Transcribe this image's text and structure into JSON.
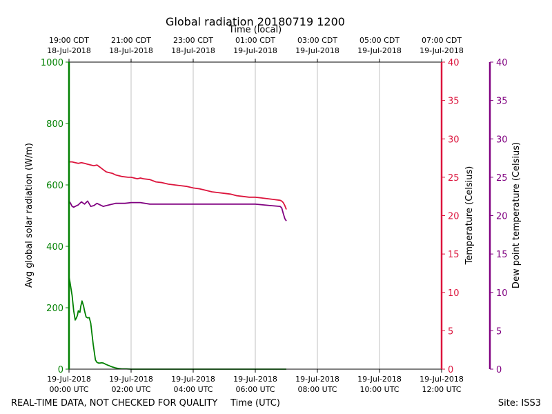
{
  "chart_data": {
    "type": "line",
    "title": "Global radiation 20180719 1200",
    "top_xlabel": "Time (local)",
    "xlabel": "Time (UTC)",
    "xlim": [
      0,
      12
    ],
    "bottom_ticks": [
      {
        "x": 0,
        "line1": "19-Jul-2018",
        "line2": "00:00 UTC"
      },
      {
        "x": 2,
        "line1": "19-Jul-2018",
        "line2": "02:00 UTC"
      },
      {
        "x": 4,
        "line1": "19-Jul-2018",
        "line2": "04:00 UTC"
      },
      {
        "x": 6,
        "line1": "19-Jul-2018",
        "line2": "06:00 UTC"
      },
      {
        "x": 8,
        "line1": "19-Jul-2018",
        "line2": "08:00 UTC"
      },
      {
        "x": 10,
        "line1": "19-Jul-2018",
        "line2": "10:00 UTC"
      },
      {
        "x": 12,
        "line1": "19-Jul-2018",
        "line2": "12:00 UTC"
      }
    ],
    "top_ticks": [
      {
        "x": 0,
        "line1": "19:00 CDT",
        "line2": "18-Jul-2018"
      },
      {
        "x": 2,
        "line1": "21:00 CDT",
        "line2": "18-Jul-2018"
      },
      {
        "x": 4,
        "line1": "23:00 CDT",
        "line2": "18-Jul-2018"
      },
      {
        "x": 6,
        "line1": "01:00 CDT",
        "line2": "19-Jul-2018"
      },
      {
        "x": 8,
        "line1": "03:00 CDT",
        "line2": "19-Jul-2018"
      },
      {
        "x": 10,
        "line1": "05:00 CDT",
        "line2": "19-Jul-2018"
      },
      {
        "x": 12,
        "line1": "07:00 CDT",
        "line2": "19-Jul-2018"
      }
    ],
    "grid": "vertical",
    "axes": [
      {
        "name": "radiation",
        "label": "Avg global solar radiation (W/m)",
        "color": "#008000",
        "ylim": [
          0,
          1000
        ],
        "ticks": [
          0,
          200,
          400,
          600,
          800,
          1000
        ]
      },
      {
        "name": "temperature",
        "label": "Temperature (Celsius)",
        "color": "#dc143c",
        "ylim": [
          0,
          40
        ],
        "ticks": [
          0,
          5,
          10,
          15,
          20,
          25,
          30,
          35,
          40
        ]
      },
      {
        "name": "dewpoint",
        "label": "Dew point temperature (Celsius)",
        "color": "#800080",
        "ylim": [
          0,
          40
        ],
        "ticks": [
          0,
          5,
          10,
          15,
          20,
          25,
          30,
          35,
          40
        ]
      }
    ],
    "series": [
      {
        "name": "Global radiation",
        "axis": "radiation",
        "color": "#008000",
        "x": [
          0,
          0.03,
          0.1,
          0.15,
          0.2,
          0.23,
          0.27,
          0.3,
          0.35,
          0.38,
          0.42,
          0.47,
          0.5,
          0.55,
          0.6,
          0.65,
          0.7,
          0.78,
          0.85,
          0.9,
          0.95,
          1.0,
          1.05,
          1.1,
          1.2,
          1.4,
          1.5,
          1.6,
          1.7,
          1.85,
          2.0,
          2.5,
          3.0,
          4.0,
          5.0,
          6.0,
          7.0
        ],
        "values": [
          300,
          285,
          240,
          190,
          160,
          165,
          175,
          190,
          185,
          205,
          222,
          205,
          190,
          170,
          167,
          168,
          150,
          80,
          30,
          22,
          20,
          20,
          21,
          20,
          15,
          7,
          4,
          2,
          1,
          1,
          0,
          0,
          0,
          0,
          0,
          0,
          0
        ]
      },
      {
        "name": "Temperature",
        "axis": "temperature",
        "color": "#dc143c",
        "x": [
          0,
          0.1,
          0.2,
          0.3,
          0.4,
          0.5,
          0.6,
          0.7,
          0.8,
          0.9,
          1.0,
          1.1,
          1.2,
          1.3,
          1.4,
          1.5,
          1.7,
          1.9,
          2.0,
          2.1,
          2.2,
          2.3,
          2.4,
          2.6,
          2.8,
          3.0,
          3.2,
          3.4,
          3.6,
          3.8,
          4.0,
          4.2,
          4.4,
          4.6,
          4.8,
          5.0,
          5.2,
          5.4,
          5.6,
          5.8,
          6.0,
          6.2,
          6.4,
          6.6,
          6.8,
          6.85,
          6.9,
          6.95,
          7.0
        ],
        "values": [
          27.0,
          27.0,
          26.9,
          26.8,
          26.9,
          26.8,
          26.7,
          26.6,
          26.5,
          26.6,
          26.3,
          26.0,
          25.7,
          25.6,
          25.5,
          25.3,
          25.1,
          25.0,
          25.0,
          24.9,
          24.8,
          24.9,
          24.8,
          24.7,
          24.4,
          24.3,
          24.1,
          24.0,
          23.9,
          23.8,
          23.6,
          23.5,
          23.3,
          23.1,
          23.0,
          22.9,
          22.8,
          22.6,
          22.5,
          22.4,
          22.4,
          22.3,
          22.2,
          22.1,
          22.0,
          21.9,
          21.7,
          21.3,
          20.8
        ]
      },
      {
        "name": "Dew point",
        "axis": "dewpoint",
        "color": "#800080",
        "x": [
          0,
          0.05,
          0.1,
          0.15,
          0.2,
          0.3,
          0.4,
          0.5,
          0.6,
          0.7,
          0.8,
          0.9,
          1.0,
          1.1,
          1.2,
          1.3,
          1.5,
          1.8,
          2.0,
          2.3,
          2.6,
          3.0,
          3.5,
          4.0,
          4.5,
          5.0,
          5.5,
          6.0,
          6.5,
          6.8,
          6.85,
          6.9,
          6.95,
          7.0
        ],
        "values": [
          21.9,
          21.6,
          21.2,
          21.1,
          21.2,
          21.4,
          21.8,
          21.5,
          21.9,
          21.2,
          21.3,
          21.6,
          21.4,
          21.2,
          21.3,
          21.4,
          21.6,
          21.6,
          21.7,
          21.7,
          21.5,
          21.5,
          21.5,
          21.5,
          21.5,
          21.5,
          21.5,
          21.5,
          21.3,
          21.2,
          21.0,
          20.3,
          19.6,
          19.3
        ]
      }
    ],
    "footer_left": "REAL-TIME DATA, NOT CHECKED FOR QUALITY",
    "footer_right": "Site: ISS3"
  }
}
